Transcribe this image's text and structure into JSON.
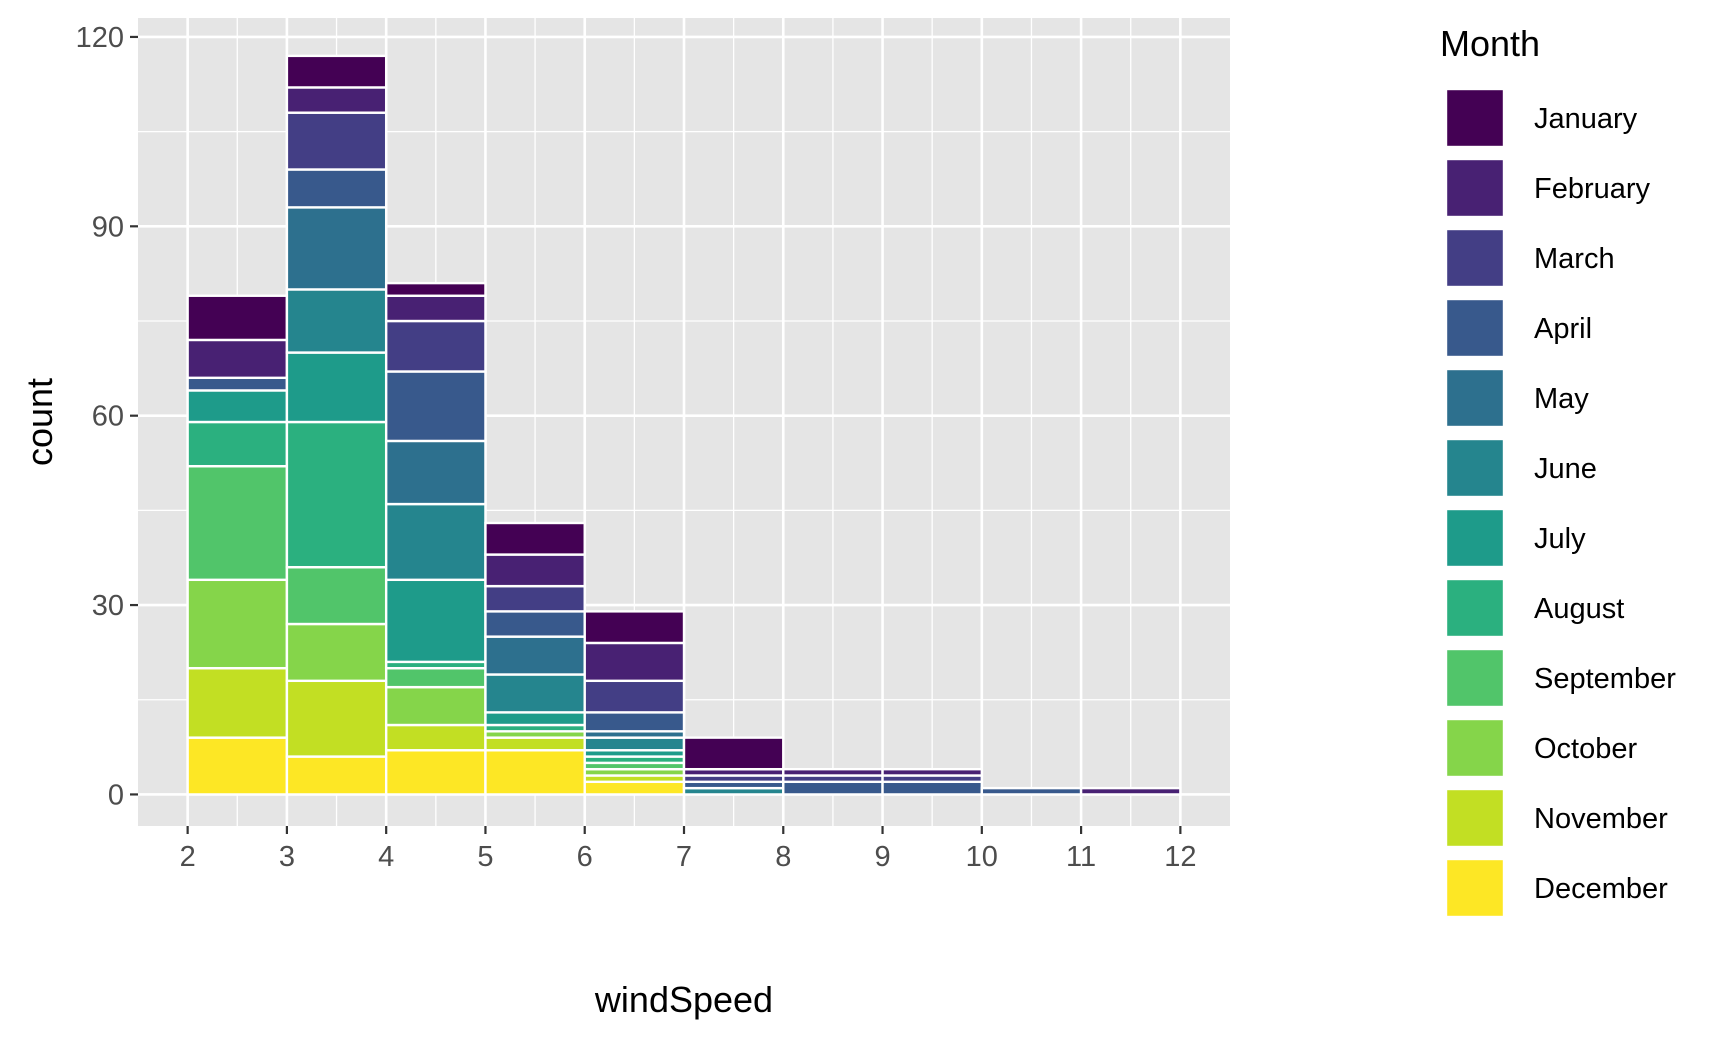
{
  "chart_data": {
    "type": "bar",
    "stacked": true,
    "histogram": true,
    "xlabel": "windSpeed",
    "ylabel": "count",
    "xlim": [
      1.5,
      12.5
    ],
    "ylim": [
      -5,
      123
    ],
    "x_ticks": [
      "2",
      "3",
      "4",
      "5",
      "6",
      "7",
      "8",
      "9",
      "10",
      "11",
      "12"
    ],
    "y_ticks": [
      "0",
      "30",
      "60",
      "90",
      "120"
    ],
    "grid": true,
    "legend_position": "right",
    "legend_title": "Month",
    "bins": [
      {
        "x0": 2,
        "x1": 3
      },
      {
        "x0": 3,
        "x1": 4
      },
      {
        "x0": 4,
        "x1": 5
      },
      {
        "x0": 5,
        "x1": 6
      },
      {
        "x0": 6,
        "x1": 7
      },
      {
        "x0": 7,
        "x1": 8
      },
      {
        "x0": 8,
        "x1": 9
      },
      {
        "x0": 9,
        "x1": 10
      },
      {
        "x0": 10,
        "x1": 11
      },
      {
        "x0": 11,
        "x1": 12
      }
    ],
    "series": [
      {
        "name": "January",
        "color": "#440154",
        "values": [
          7,
          5,
          2,
          5,
          5,
          5,
          0,
          0,
          0,
          0
        ]
      },
      {
        "name": "February",
        "color": "#482173",
        "values": [
          6,
          4,
          4,
          5,
          6,
          1,
          1,
          1,
          0,
          1
        ]
      },
      {
        "name": "March",
        "color": "#433E85",
        "values": [
          0,
          9,
          8,
          4,
          5,
          1,
          1,
          1,
          0,
          0
        ]
      },
      {
        "name": "April",
        "color": "#38598C",
        "values": [
          2,
          6,
          11,
          4,
          3,
          1,
          2,
          2,
          1,
          0
        ]
      },
      {
        "name": "May",
        "color": "#2D708E",
        "values": [
          0,
          13,
          10,
          6,
          1,
          0,
          0,
          0,
          0,
          0
        ]
      },
      {
        "name": "June",
        "color": "#25858E",
        "values": [
          0,
          10,
          12,
          6,
          2,
          1,
          0,
          0,
          0,
          0
        ]
      },
      {
        "name": "July",
        "color": "#1E9B8A",
        "values": [
          5,
          11,
          13,
          2,
          1,
          0,
          0,
          0,
          0,
          0
        ]
      },
      {
        "name": "August",
        "color": "#2BB07F",
        "values": [
          7,
          23,
          1,
          1,
          1,
          0,
          0,
          0,
          0,
          0
        ]
      },
      {
        "name": "September",
        "color": "#51C56A",
        "values": [
          18,
          9,
          3,
          0,
          1,
          0,
          0,
          0,
          0,
          0
        ]
      },
      {
        "name": "October",
        "color": "#85D54A",
        "values": [
          14,
          9,
          6,
          1,
          1,
          0,
          0,
          0,
          0,
          0
        ]
      },
      {
        "name": "November",
        "color": "#C2DF23",
        "values": [
          11,
          12,
          4,
          2,
          1,
          0,
          0,
          0,
          0,
          0
        ]
      },
      {
        "name": "December",
        "color": "#FDE725",
        "values": [
          9,
          6,
          7,
          7,
          2,
          0,
          0,
          0,
          0,
          0
        ]
      }
    ]
  },
  "style": {
    "panel_background": "#e5e5e5",
    "grid_color": "#ffffff",
    "bar_outline": "#ffffff"
  }
}
